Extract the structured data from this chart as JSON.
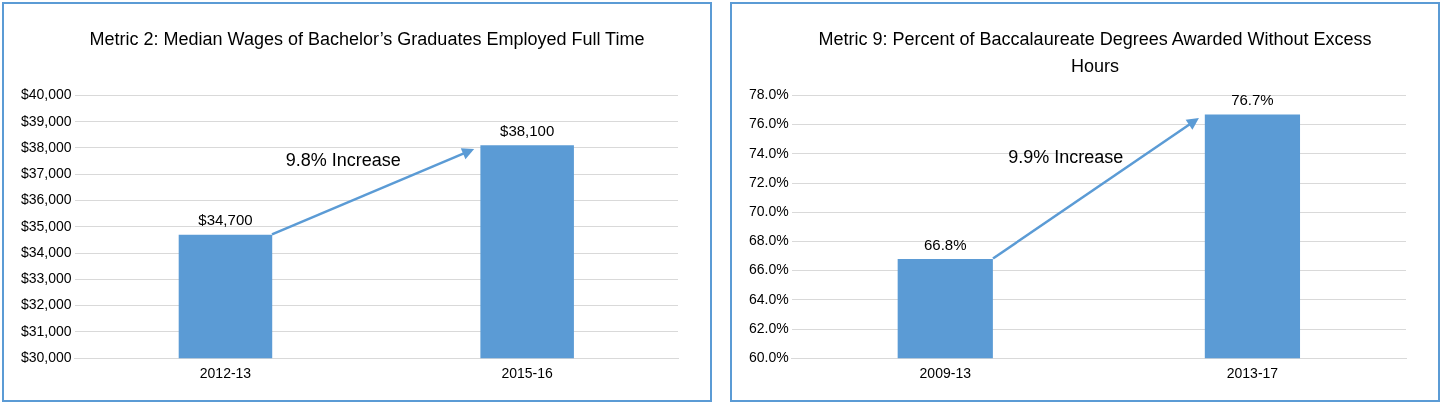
{
  "chart_data": [
    {
      "type": "bar",
      "title": "Metric 2: Median Wages of Bachelor’s Graduates Employed Full Time",
      "categories": [
        "2012-13",
        "2015-16"
      ],
      "values": [
        34700,
        38100
      ],
      "value_labels": [
        "$34,700",
        "$38,100"
      ],
      "color": "#5b9bd5",
      "ylim": [
        30000,
        40000
      ],
      "yticks": [
        {
          "value": 30000,
          "label": "$30,000"
        },
        {
          "value": 31000,
          "label": "$31,000"
        },
        {
          "value": 32000,
          "label": "$32,000"
        },
        {
          "value": 33000,
          "label": "$33,000"
        },
        {
          "value": 34000,
          "label": "$34,000"
        },
        {
          "value": 35000,
          "label": "$35,000"
        },
        {
          "value": 36000,
          "label": "$36,000"
        },
        {
          "value": 37000,
          "label": "$37,000"
        },
        {
          "value": 38000,
          "label": "$38,000"
        },
        {
          "value": 39000,
          "label": "$39,000"
        },
        {
          "value": 40000,
          "label": "$40,000"
        }
      ],
      "grid": "y",
      "annotations": [
        "9.8% Increase"
      ]
    },
    {
      "type": "bar",
      "title": "Metric 9: Percent of Baccalaureate Degrees Awarded Without Excess Hours",
      "categories": [
        "2009-13",
        "2013-17"
      ],
      "values": [
        66.8,
        76.7
      ],
      "value_labels": [
        "66.8%",
        "76.7%"
      ],
      "color": "#5b9bd5",
      "ylim": [
        60,
        78
      ],
      "yticks": [
        {
          "value": 60,
          "label": "60.0%"
        },
        {
          "value": 62,
          "label": "62.0%"
        },
        {
          "value": 64,
          "label": "64.0%"
        },
        {
          "value": 66,
          "label": "66.0%"
        },
        {
          "value": 68,
          "label": "68.0%"
        },
        {
          "value": 70,
          "label": "70.0%"
        },
        {
          "value": 72,
          "label": "72.0%"
        },
        {
          "value": 74,
          "label": "74.0%"
        },
        {
          "value": 76,
          "label": "76.0%"
        },
        {
          "value": 78,
          "label": "78.0%"
        }
      ],
      "grid": "y",
      "annotations": [
        "9.9% Increase"
      ]
    }
  ]
}
